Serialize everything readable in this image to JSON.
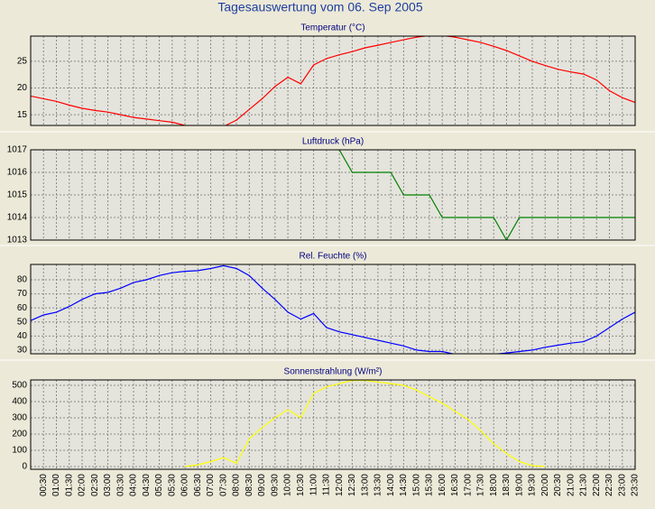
{
  "title": "Tagesauswertung vom 06. Sep 2005",
  "chart_data": [
    {
      "type": "line",
      "title": "Temperatur (°C)",
      "color": "#ff0000",
      "values": [
        18.5,
        18,
        17.5,
        16.8,
        16.2,
        15.8,
        15.5,
        15,
        14.5,
        14.2,
        13.9,
        13.6,
        13,
        12.8,
        12.8,
        12.8,
        14,
        16,
        18,
        20.3,
        22,
        20.8,
        24.3,
        25.5,
        26.2,
        26.8,
        27.5,
        28,
        28.5,
        29,
        29.5,
        29.8,
        29.8,
        29.5,
        29,
        28.5,
        27.8,
        27,
        26,
        25,
        24.2,
        23.5,
        23,
        22.6,
        21.5,
        19.5,
        18.2,
        17.3
      ],
      "ylim": [
        13,
        29.7
      ],
      "yticks": [
        15,
        20,
        25
      ],
      "grid": true
    },
    {
      "type": "line",
      "title": "Luftdruck (hPa)",
      "color": "#008000",
      "values": [
        null,
        null,
        null,
        null,
        null,
        null,
        null,
        null,
        null,
        null,
        null,
        null,
        null,
        null,
        null,
        null,
        null,
        null,
        null,
        null,
        null,
        null,
        null,
        null,
        1017,
        1016,
        1016,
        1016,
        1016,
        1015,
        1015,
        1015,
        1014,
        1014,
        1014,
        1014,
        1014,
        1013,
        1014,
        1014,
        1014,
        1014,
        1014,
        1014,
        1014,
        1014,
        1014,
        1014
      ],
      "ylim": [
        1013,
        1017
      ],
      "yticks": [
        1013,
        1014,
        1015,
        1016,
        1017
      ],
      "grid": true
    },
    {
      "type": "line",
      "title": "Rel. Feuchte (%)",
      "color": "#0000ff",
      "values": [
        51,
        55,
        57,
        61,
        66,
        70,
        71,
        74,
        78,
        80,
        83,
        85,
        86,
        86.5,
        88,
        90,
        88,
        83,
        74,
        66,
        57,
        52,
        56,
        46,
        43,
        41,
        39,
        37,
        35,
        33,
        30,
        29,
        29,
        27,
        27,
        27,
        27,
        28,
        29,
        30,
        32,
        33.5,
        35,
        36,
        40,
        46,
        52,
        57
      ],
      "ylim": [
        27.4,
        90.9
      ],
      "yticks": [
        30,
        40,
        50,
        60,
        70,
        80
      ],
      "grid": true
    },
    {
      "type": "line",
      "title": "Sonnenstrahlung (W/m²)",
      "color": "#ffff00",
      "categories": [
        null,
        "00:30",
        "01:00",
        "01:30",
        "02:00",
        "02:30",
        "03:00",
        "03:30",
        "04:00",
        "04:30",
        "05:00",
        "05:30",
        "06:00",
        "06:30",
        "07:00",
        "07:30",
        "08:00",
        "08:30",
        "09:00",
        "09:30",
        "10:00",
        "10:30",
        "11:00",
        "11:30",
        "12:00",
        "12:30",
        "13:00",
        "13:30",
        "14:00",
        "14:30",
        "15:00",
        "15:30",
        "16:00",
        "16:30",
        "17:00",
        "17:30",
        "18:00",
        "18:30",
        "19:00",
        "19:30",
        "20:00",
        "20:30",
        "21:00",
        "21:30",
        "22:00",
        "22:30",
        "23:00",
        "23:30"
      ],
      "values": [
        null,
        null,
        null,
        null,
        null,
        null,
        null,
        null,
        null,
        null,
        null,
        null,
        0,
        10,
        30,
        55,
        20,
        170,
        240,
        300,
        350,
        300,
        450,
        490,
        510,
        530,
        530,
        520,
        510,
        500,
        470,
        430,
        390,
        340,
        290,
        220,
        140,
        80,
        30,
        5,
        0,
        null,
        null,
        null,
        null,
        null,
        null,
        null
      ],
      "ylim": [
        -17,
        533
      ],
      "yticks": [
        0,
        100,
        200,
        300,
        400,
        500
      ],
      "grid": true
    }
  ]
}
